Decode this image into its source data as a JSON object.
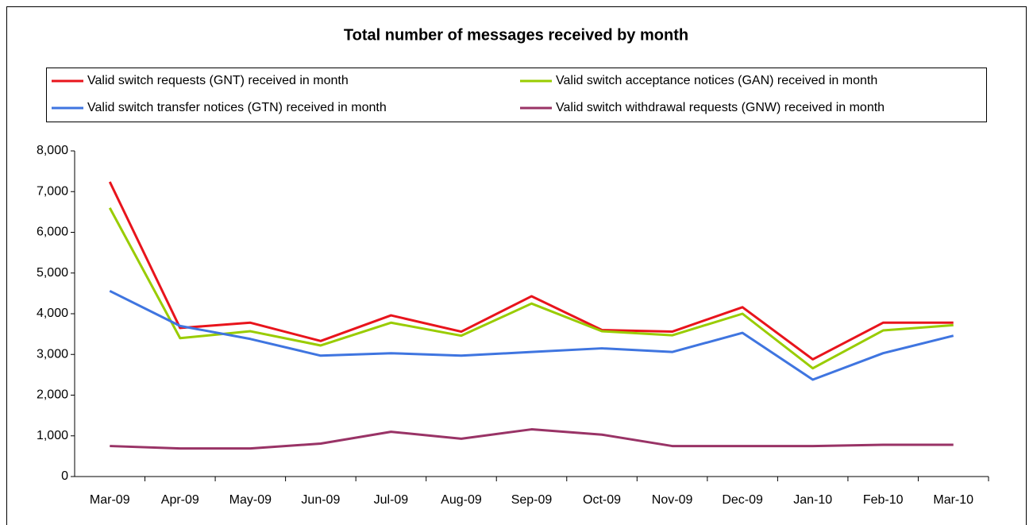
{
  "chart_data": {
    "type": "line",
    "title": "Total number of messages received by month",
    "categories": [
      "Mar-09",
      "Apr-09",
      "May-09",
      "Jun-09",
      "Jul-09",
      "Aug-09",
      "Sep-09",
      "Oct-09",
      "Nov-09",
      "Dec-09",
      "Jan-10",
      "Feb-10",
      "Mar-10"
    ],
    "series": [
      {
        "name": "Valid switch requests (GNT) received in month",
        "color": "#e8141c",
        "values": [
          7240,
          3650,
          3780,
          3330,
          3960,
          3560,
          4430,
          3600,
          3560,
          4160,
          2880,
          3780,
          3780
        ]
      },
      {
        "name": "Valid switch acceptance notices (GAN) received in month",
        "color": "#99cc00",
        "values": [
          6600,
          3400,
          3570,
          3220,
          3780,
          3460,
          4250,
          3570,
          3470,
          4000,
          2660,
          3590,
          3720
        ]
      },
      {
        "name": "Valid switch transfer notices (GTN) received in month",
        "color": "#3f75e0",
        "values": [
          4560,
          3700,
          3380,
          2970,
          3030,
          2970,
          3060,
          3150,
          3060,
          3530,
          2380,
          3030,
          3460
        ]
      },
      {
        "name": "Valid switch withdrawal requests (GNW) received in month",
        "color": "#993366",
        "values": [
          750,
          690,
          690,
          810,
          1100,
          930,
          1160,
          1030,
          750,
          750,
          750,
          780,
          780
        ]
      }
    ],
    "ylim": [
      0,
      8000
    ],
    "yticks": [
      0,
      {
        "value": 1000,
        "label": "1,000"
      },
      {
        "value": 2000,
        "label": "2,000"
      },
      {
        "value": 3000,
        "label": "3,000"
      },
      {
        "value": 4000,
        "label": "4,000"
      },
      {
        "value": 5000,
        "label": "5,000"
      },
      {
        "value": 6000,
        "label": "6,000"
      },
      {
        "value": 7000,
        "label": "7,000"
      },
      {
        "value": 8000,
        "label": "8,000"
      }
    ],
    "grid": false,
    "legend": "top"
  }
}
